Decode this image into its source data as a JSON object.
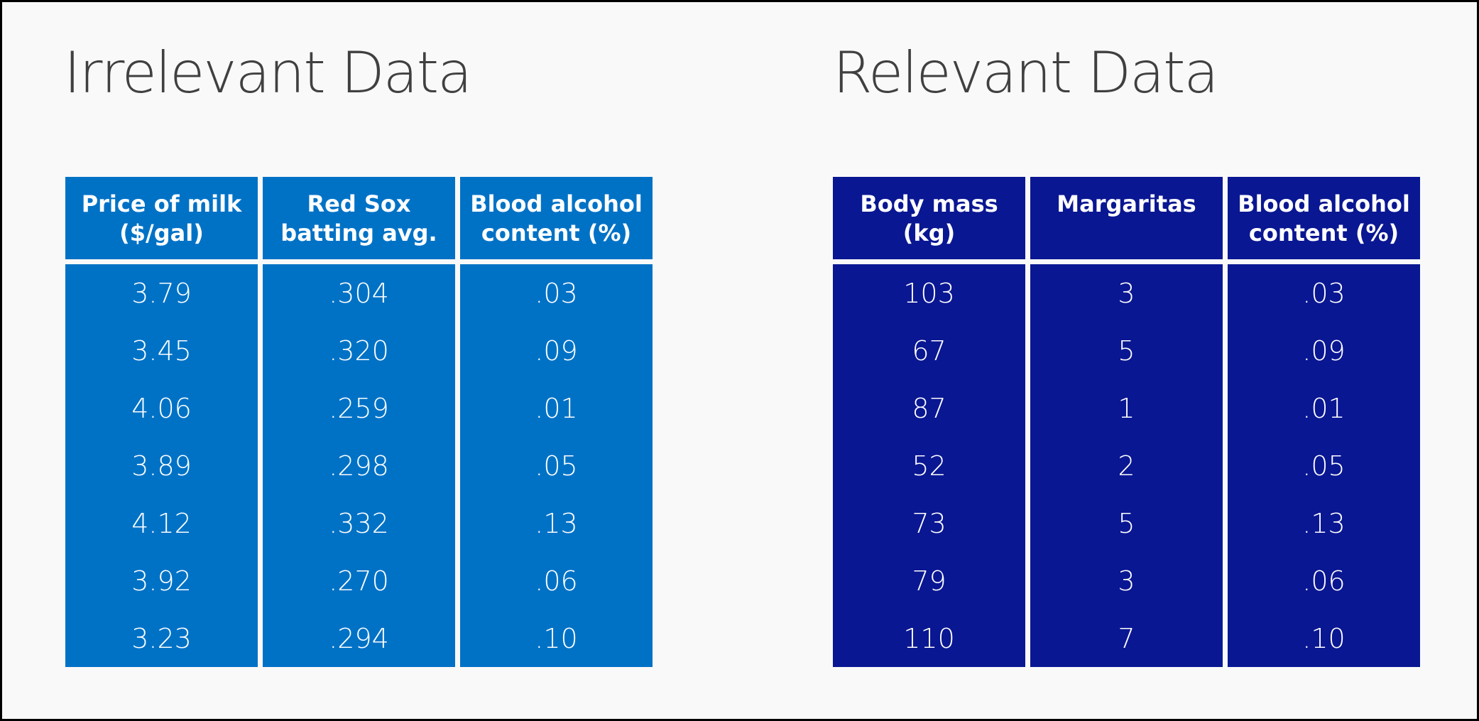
{
  "colors": {
    "background": "#f9f9f9",
    "left_table": "#0072c6",
    "right_table": "#0a1792",
    "title_text": "#404040"
  },
  "chart_data": [
    {
      "type": "table",
      "title": "Irrelevant Data",
      "columns": [
        "Price of milk\n($/gal)",
        "Red Sox\nbatting avg.",
        "Blood alcohol\ncontent (%)"
      ],
      "rows": [
        [
          "3.79",
          ".304",
          ".03"
        ],
        [
          "3.45",
          ".320",
          ".09"
        ],
        [
          "4.06",
          ".259",
          ".01"
        ],
        [
          "3.89",
          ".298",
          ".05"
        ],
        [
          "4.12",
          ".332",
          ".13"
        ],
        [
          "3.92",
          ".270",
          ".06"
        ],
        [
          "3.23",
          ".294",
          ".10"
        ]
      ]
    },
    {
      "type": "table",
      "title": "Relevant Data",
      "columns": [
        "Body mass\n(kg)",
        "Margaritas",
        "Blood alcohol\ncontent (%)"
      ],
      "rows": [
        [
          "103",
          "3",
          ".03"
        ],
        [
          "67",
          "5",
          ".09"
        ],
        [
          "87",
          "1",
          ".01"
        ],
        [
          "52",
          "2",
          ".05"
        ],
        [
          "73",
          "5",
          ".13"
        ],
        [
          "79",
          "3",
          ".06"
        ],
        [
          "110",
          "7",
          ".10"
        ]
      ]
    }
  ]
}
